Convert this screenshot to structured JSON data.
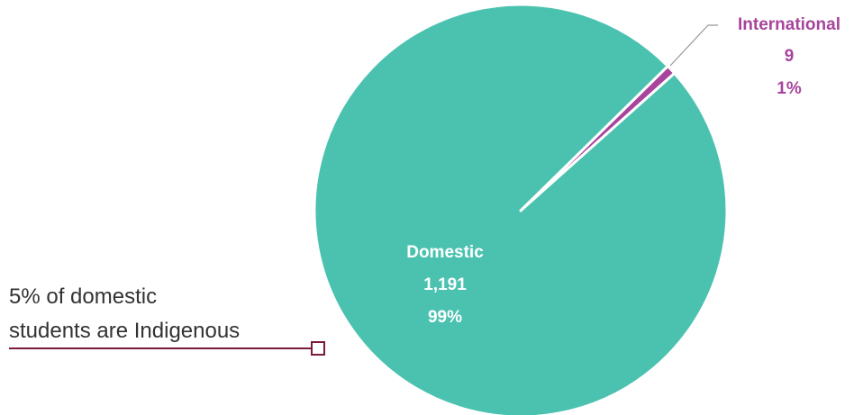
{
  "chart_data": {
    "type": "pie",
    "title": "",
    "slices": [
      {
        "label": "Domestic",
        "value": 1191,
        "value_text": "1,191",
        "percent_text": "99%",
        "color": "#4bc2b0",
        "label_color": "#ffffff"
      },
      {
        "label": "International",
        "value": 9,
        "value_text": "9",
        "percent_text": "1%",
        "color": "#a7449c",
        "label_color": "#a7449c"
      }
    ],
    "legend": "none"
  },
  "annotation": {
    "lines": [
      "5% of domestic",
      "students are Indigenous"
    ],
    "color": "#7b1a3c"
  }
}
